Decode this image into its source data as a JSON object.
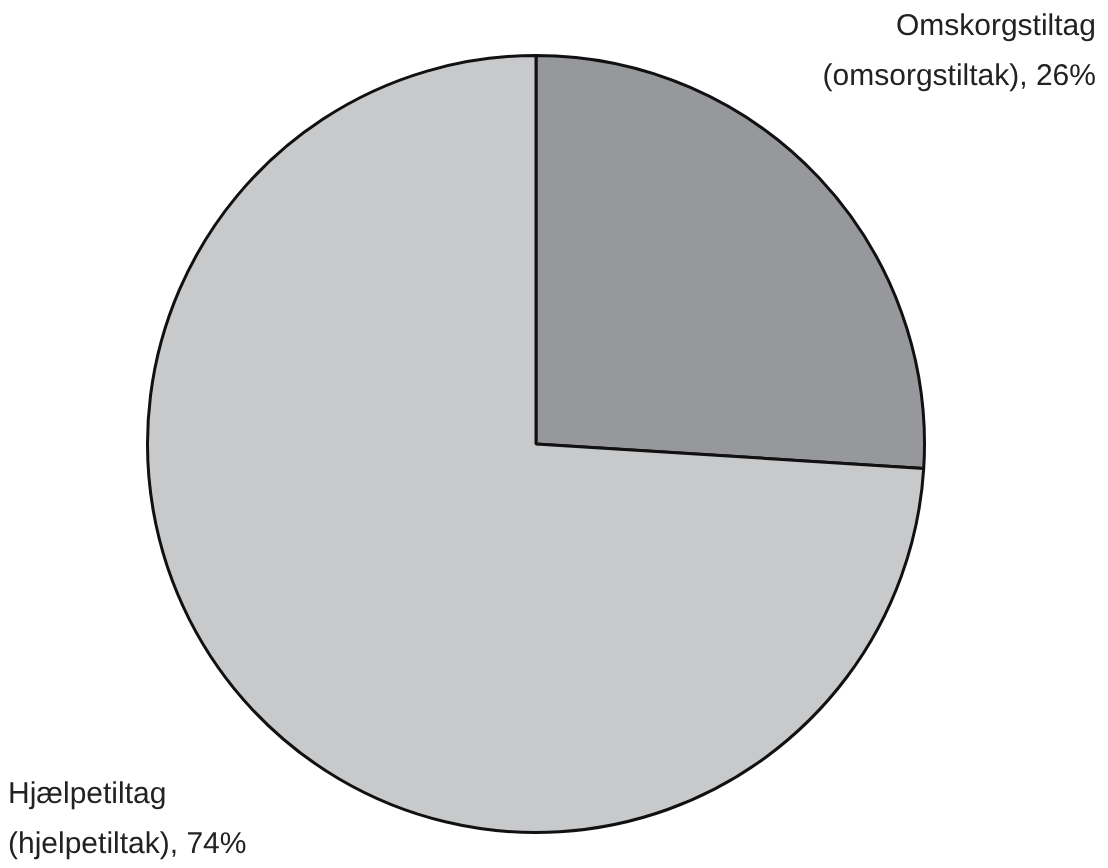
{
  "chart_data": {
    "type": "pie",
    "categories": [
      "Omskorgstiltag (omsorgstiltak)",
      "Hjælpetiltag (hjelpetiltak)"
    ],
    "values": [
      26,
      74
    ],
    "value_labels": [
      "26%",
      "74%"
    ],
    "colors": [
      "#97989b",
      "#c8c9cb"
    ],
    "legend": false
  }
}
